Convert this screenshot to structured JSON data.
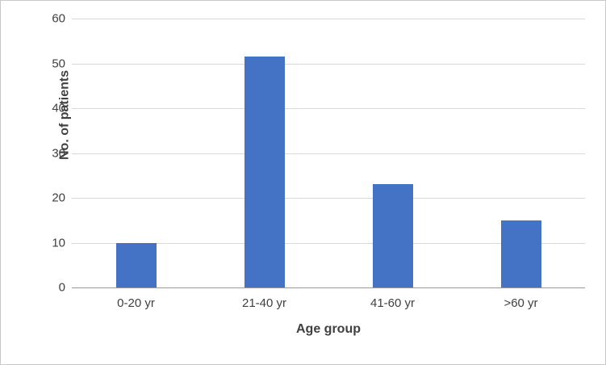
{
  "chart_data": {
    "type": "bar",
    "categories": [
      "0-20 yr",
      "21-40 yr",
      "41-60 yr",
      ">60 yr"
    ],
    "values": [
      10,
      51.5,
      23,
      15
    ],
    "title": "",
    "xlabel": "Age group",
    "ylabel": "No. of patients",
    "ylim": [
      0,
      60
    ],
    "yticks": [
      0,
      10,
      20,
      30,
      40,
      50,
      60
    ],
    "bar_color": "#4472c4",
    "gridline_color": "#d9d9d9",
    "axis_line_color": "#9b9b9b",
    "grid": true,
    "legend_position": "none"
  }
}
